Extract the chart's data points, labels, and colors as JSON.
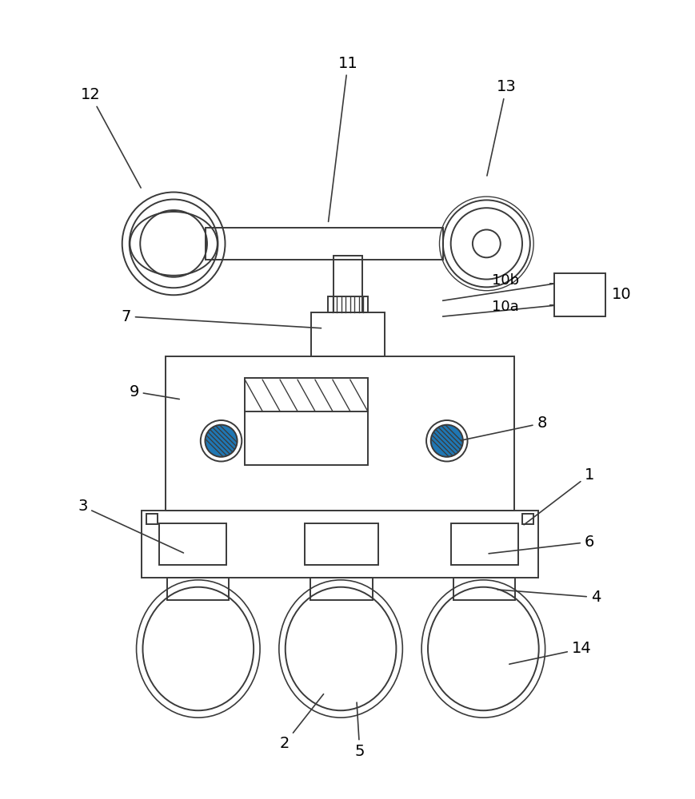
{
  "bg_color": "#ffffff",
  "line_color": "#3a3a3a",
  "lw": 1.4,
  "fig_w": 8.7,
  "fig_h": 10.0,
  "label_fs": 14,
  "label_color": "#000000"
}
